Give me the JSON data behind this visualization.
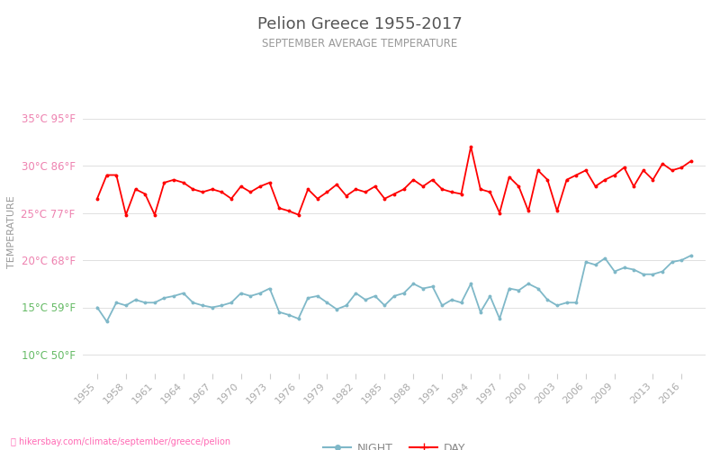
{
  "title": "Pelion Greece 1955-2017",
  "subtitle": "SEPTEMBER AVERAGE TEMPERATURE",
  "xlabel_url": "hikersbay.com/climate/september/greece/pelion",
  "ylabel": "TEMPERATURE",
  "years": [
    1955,
    1956,
    1957,
    1958,
    1959,
    1960,
    1961,
    1962,
    1963,
    1964,
    1965,
    1966,
    1967,
    1968,
    1969,
    1970,
    1971,
    1972,
    1973,
    1974,
    1975,
    1976,
    1977,
    1978,
    1979,
    1980,
    1981,
    1982,
    1983,
    1984,
    1985,
    1986,
    1987,
    1988,
    1989,
    1990,
    1991,
    1992,
    1993,
    1994,
    1995,
    1996,
    1997,
    1998,
    1999,
    2000,
    2001,
    2002,
    2003,
    2004,
    2005,
    2006,
    2007,
    2008,
    2009,
    2010,
    2011,
    2012,
    2013,
    2014,
    2015,
    2016,
    2017
  ],
  "day_temps": [
    26.5,
    29.0,
    29.0,
    24.8,
    27.5,
    27.0,
    24.8,
    28.2,
    28.5,
    28.2,
    27.5,
    27.2,
    27.5,
    27.2,
    26.5,
    27.8,
    27.2,
    27.8,
    28.2,
    25.5,
    25.2,
    24.8,
    27.5,
    26.5,
    27.2,
    28.0,
    26.8,
    27.5,
    27.2,
    27.8,
    26.5,
    27.0,
    27.5,
    28.5,
    27.8,
    28.5,
    27.5,
    27.2,
    27.0,
    32.0,
    27.5,
    27.2,
    25.0,
    28.8,
    27.8,
    25.2,
    29.5,
    28.5,
    25.2,
    28.5,
    29.0,
    29.5,
    27.8,
    28.5,
    29.0,
    29.8,
    27.8,
    29.5,
    28.5,
    30.2,
    29.5,
    29.8,
    30.5
  ],
  "night_temps": [
    15.0,
    13.5,
    15.5,
    15.2,
    15.8,
    15.5,
    15.5,
    16.0,
    16.2,
    16.5,
    15.5,
    15.2,
    15.0,
    15.2,
    15.5,
    16.5,
    16.2,
    16.5,
    17.0,
    14.5,
    14.2,
    13.8,
    16.0,
    16.2,
    15.5,
    14.8,
    15.2,
    16.5,
    15.8,
    16.2,
    15.2,
    16.2,
    16.5,
    17.5,
    17.0,
    17.2,
    15.2,
    15.8,
    15.5,
    17.5,
    14.5,
    16.2,
    13.8,
    17.0,
    16.8,
    17.5,
    17.0,
    15.8,
    15.2,
    15.5,
    15.5,
    19.8,
    19.5,
    20.2,
    18.8,
    19.2,
    19.0,
    18.5,
    18.5,
    18.8,
    19.8,
    20.0,
    20.5
  ],
  "day_color": "#ff0000",
  "night_color": "#7fb8c8",
  "title_color": "#555555",
  "subtitle_color": "#999999",
  "ylabel_color": "#999999",
  "tick_color_pink": "#ee82b0",
  "tick_color_green": "#66bb66",
  "background_color": "#ffffff",
  "grid_color": "#e0e0e0",
  "ylim": [
    8,
    38
  ],
  "yticks_celsius": [
    10,
    15,
    20,
    25,
    30,
    35
  ],
  "yticks_fahrenheit": [
    50,
    59,
    68,
    77,
    86,
    95
  ],
  "green_ticks": [
    10,
    15
  ],
  "xtick_years": [
    1955,
    1958,
    1961,
    1964,
    1967,
    1970,
    1973,
    1976,
    1979,
    1982,
    1985,
    1988,
    1991,
    1994,
    1997,
    2000,
    2003,
    2006,
    2009,
    2013,
    2016
  ],
  "xlim": [
    1953.5,
    2018.5
  ]
}
